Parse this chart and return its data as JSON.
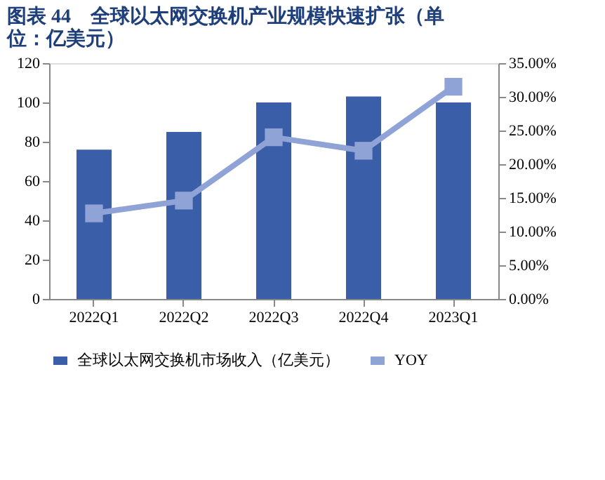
{
  "chart_data": {
    "type": "bar",
    "title": "图表 44　全球以太网交换机产业规模快速扩张（单位：亿美元）",
    "categories": [
      "2022Q1",
      "2022Q2",
      "2022Q3",
      "2022Q4",
      "2023Q1"
    ],
    "series": [
      {
        "name": "全球以太网交换机市场收入（亿美元）",
        "color": "#3a5fa8",
        "values": [
          76,
          85,
          100,
          103,
          100
        ]
      },
      {
        "name": "YOY",
        "color": "#8fa3d6",
        "type": "line",
        "axis": "y2",
        "marker": "square",
        "values": [
          12.7,
          14.6,
          24.0,
          22.0,
          31.5
        ]
      }
    ],
    "ylim": [
      0,
      120
    ],
    "yticks": [
      0,
      20,
      40,
      60,
      80,
      100,
      120
    ],
    "y2lim": [
      0,
      35
    ],
    "y2ticks": [
      {
        "value": 0,
        "label": "0.00%"
      },
      {
        "value": 5,
        "label": "5.00%"
      },
      {
        "value": 10,
        "label": "10.00%"
      },
      {
        "value": 15,
        "label": "15.00%"
      },
      {
        "value": 20,
        "label": "20.00%"
      },
      {
        "value": 25,
        "label": "25.00%"
      },
      {
        "value": 30,
        "label": "30.00%"
      },
      {
        "value": 35,
        "label": "35.00%"
      }
    ],
    "grid": false,
    "legend": "bottom"
  }
}
